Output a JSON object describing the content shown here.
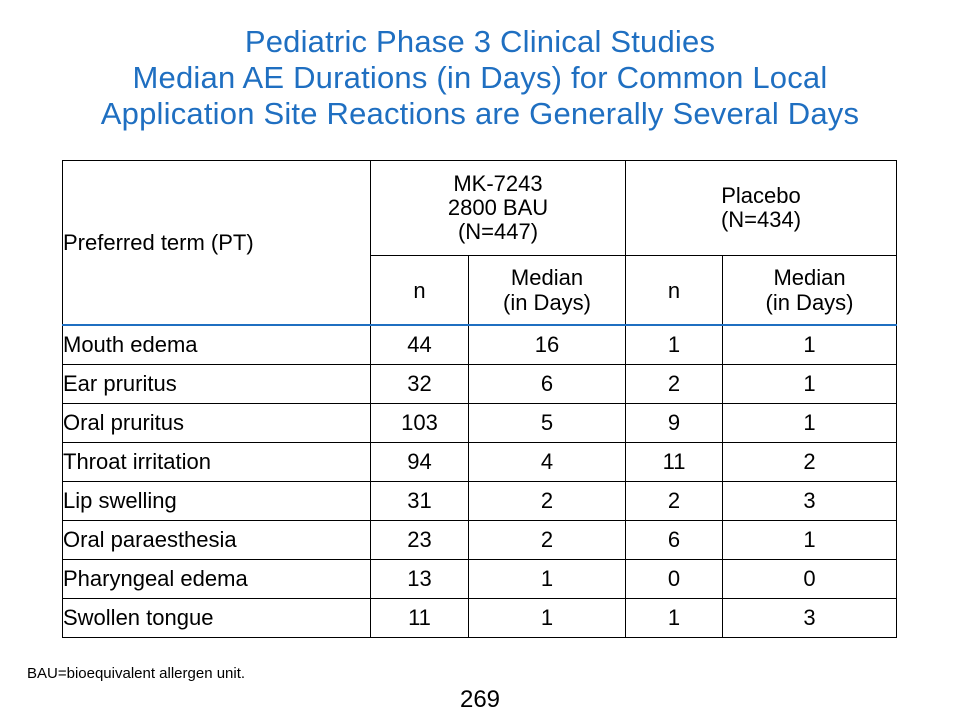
{
  "title_lines": [
    "Pediatric Phase 3 Clinical Studies",
    "Median AE Durations (in Days) for Common Local",
    "Application Site Reactions are Generally Several Days"
  ],
  "table": {
    "row_header": "Preferred term (PT)",
    "groups": [
      {
        "lines": [
          "MK-7243",
          "2800 BAU",
          "(N=447)"
        ]
      },
      {
        "lines": [
          "Placebo",
          "(N=434)"
        ]
      }
    ],
    "subheaders": {
      "n": "n",
      "median_line1": "Median",
      "median_line2": "(in Days)"
    },
    "rows": [
      {
        "term": "Mouth edema",
        "values": [
          "44",
          "16",
          "1",
          "1"
        ]
      },
      {
        "term": "Ear pruritus",
        "values": [
          "32",
          "6",
          "2",
          "1"
        ]
      },
      {
        "term": "Oral pruritus",
        "values": [
          "103",
          "5",
          "9",
          "1"
        ]
      },
      {
        "term": "Throat irritation",
        "values": [
          "94",
          "4",
          "11",
          "2"
        ]
      },
      {
        "term": "Lip swelling",
        "values": [
          "31",
          "2",
          "2",
          "3"
        ]
      },
      {
        "term": "Oral paraesthesia",
        "values": [
          "23",
          "2",
          "6",
          "1"
        ]
      },
      {
        "term": "Pharyngeal edema",
        "values": [
          "13",
          "1",
          "0",
          "0"
        ]
      },
      {
        "term": "Swollen tongue",
        "values": [
          "11",
          "1",
          "1",
          "3"
        ]
      }
    ]
  },
  "footnote": "BAU=bioequivalent allergen unit.",
  "page_number": "269",
  "colors": {
    "title": "#1f6fc1",
    "header_rule": "#1f6fc1",
    "grid": "#000000"
  }
}
